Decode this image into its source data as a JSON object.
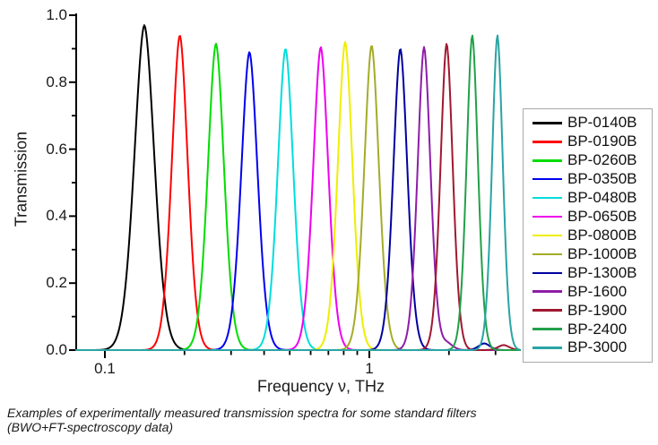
{
  "figure": {
    "background": "#ffffff",
    "caption_line1": "Examples of experimentally measured transmission spectra for some standard filters",
    "caption_line2": "(BWO+FT-spectroscopy data)"
  },
  "chart_data": {
    "type": "line",
    "title": "",
    "xlabel": "Frequency ν, THz",
    "ylabel": "Transmission",
    "x_scale": "log10",
    "xlim": [
      0.078,
      3.72
    ],
    "ylim": [
      0.0,
      1.0
    ],
    "grid": false,
    "legend_position": "right",
    "axis_color": "#000000",
    "x_major_ticks": [
      0.1,
      1
    ],
    "x_major_tick_labels": [
      "0.1",
      "1"
    ],
    "x_minor_ticks": [
      0.2,
      0.3,
      0.4,
      0.5,
      0.6,
      0.7,
      0.8,
      0.9,
      2,
      3
    ],
    "y_major_ticks": [
      0.0,
      0.2,
      0.4,
      0.6,
      0.8,
      1.0
    ],
    "y_major_tick_labels": [
      "0.0",
      "0.2",
      "0.4",
      "0.6",
      "0.8",
      "1.0"
    ],
    "y_minor_ticks": [
      0.1,
      0.3,
      0.5,
      0.7,
      0.9
    ],
    "series": [
      {
        "name": "BP-0140B",
        "color": "#000000",
        "peak_freq_thz": 0.141,
        "peak_transmission": 0.97,
        "fwhm_log10": 0.089,
        "sidelobe": null
      },
      {
        "name": "BP-0190B",
        "color": "#ff0000",
        "peak_freq_thz": 0.192,
        "peak_transmission": 0.94,
        "fwhm_log10": 0.071,
        "sidelobe": null
      },
      {
        "name": "BP-0260B",
        "color": "#00dd00",
        "peak_freq_thz": 0.263,
        "peak_transmission": 0.915,
        "fwhm_log10": 0.072,
        "sidelobe": null
      },
      {
        "name": "BP-0350B",
        "color": "#0000ee",
        "peak_freq_thz": 0.352,
        "peak_transmission": 0.89,
        "fwhm_log10": 0.073,
        "sidelobe": null
      },
      {
        "name": "BP-0480B",
        "color": "#00dddd",
        "peak_freq_thz": 0.482,
        "peak_transmission": 0.9,
        "fwhm_log10": 0.07,
        "sidelobe": null
      },
      {
        "name": "BP-0650B",
        "color": "#ee00ee",
        "peak_freq_thz": 0.655,
        "peak_transmission": 0.905,
        "fwhm_log10": 0.068,
        "sidelobe": null
      },
      {
        "name": "BP-0800B",
        "color": "#eeee00",
        "peak_freq_thz": 0.81,
        "peak_transmission": 0.92,
        "fwhm_log10": 0.066,
        "sidelobe": null
      },
      {
        "name": "BP-1000B",
        "color": "#a4ac28",
        "peak_freq_thz": 1.02,
        "peak_transmission": 0.91,
        "fwhm_log10": 0.066,
        "sidelobe": null
      },
      {
        "name": "BP-1300B",
        "color": "#0000a0",
        "peak_freq_thz": 1.31,
        "peak_transmission": 0.9,
        "fwhm_log10": 0.063,
        "sidelobe": {
          "freq_thz": 2.72,
          "amplitude": 0.02
        }
      },
      {
        "name": "BP-1600",
        "color": "#8e1ca8",
        "peak_freq_thz": 1.61,
        "peak_transmission": 0.905,
        "fwhm_log10": 0.058,
        "sidelobe": {
          "freq_thz": 1.97,
          "amplitude": 0.02
        }
      },
      {
        "name": "BP-1900",
        "color": "#a01830",
        "peak_freq_thz": 1.96,
        "peak_transmission": 0.915,
        "fwhm_log10": 0.055,
        "sidelobe": {
          "freq_thz": 3.22,
          "amplitude": 0.015
        }
      },
      {
        "name": "BP-2400",
        "color": "#22a04a",
        "peak_freq_thz": 2.45,
        "peak_transmission": 0.94,
        "fwhm_log10": 0.051,
        "sidelobe": null
      },
      {
        "name": "BP-3000",
        "color": "#2aa4a4",
        "peak_freq_thz": 3.05,
        "peak_transmission": 0.94,
        "fwhm_log10": 0.048,
        "sidelobe": null
      }
    ]
  }
}
